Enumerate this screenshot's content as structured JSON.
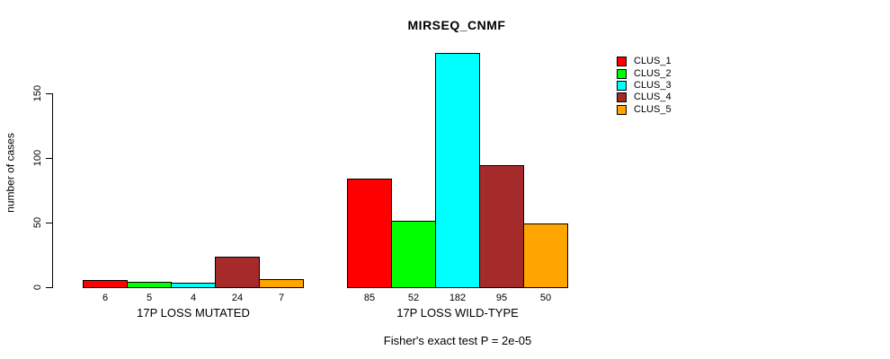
{
  "chart_data": {
    "type": "bar",
    "title": "MIRSEQ_CNMF",
    "ylabel": "number of cases",
    "xlabel": "",
    "yticks": [
      0,
      50,
      100,
      150
    ],
    "ylim": [
      0,
      182
    ],
    "grid": false,
    "legend_position": "right",
    "legend": [
      {
        "name": "CLUS_1",
        "color": "#FF0000"
      },
      {
        "name": "CLUS_2",
        "color": "#00FF00"
      },
      {
        "name": "CLUS_3",
        "color": "#00FFFF"
      },
      {
        "name": "CLUS_4",
        "color": "#A52A2A"
      },
      {
        "name": "CLUS_5",
        "color": "#FFA500"
      }
    ],
    "categories": [
      "17P LOSS MUTATED",
      "17P LOSS WILD-TYPE"
    ],
    "series": [
      {
        "name": "CLUS_1",
        "values": [
          6,
          85
        ]
      },
      {
        "name": "CLUS_2",
        "values": [
          5,
          52
        ]
      },
      {
        "name": "CLUS_3",
        "values": [
          4,
          182
        ]
      },
      {
        "name": "CLUS_4",
        "values": [
          24,
          95
        ]
      },
      {
        "name": "CLUS_5",
        "values": [
          7,
          50
        ]
      }
    ],
    "groups": [
      {
        "label": "17P LOSS MUTATED",
        "values": [
          6,
          5,
          4,
          24,
          7
        ]
      },
      {
        "label": "17P LOSS WILD-TYPE",
        "values": [
          85,
          52,
          182,
          95,
          50
        ]
      }
    ],
    "footnote": "Fisher's exact test P = 2e-05",
    "bar_value_labels_shown": true
  }
}
